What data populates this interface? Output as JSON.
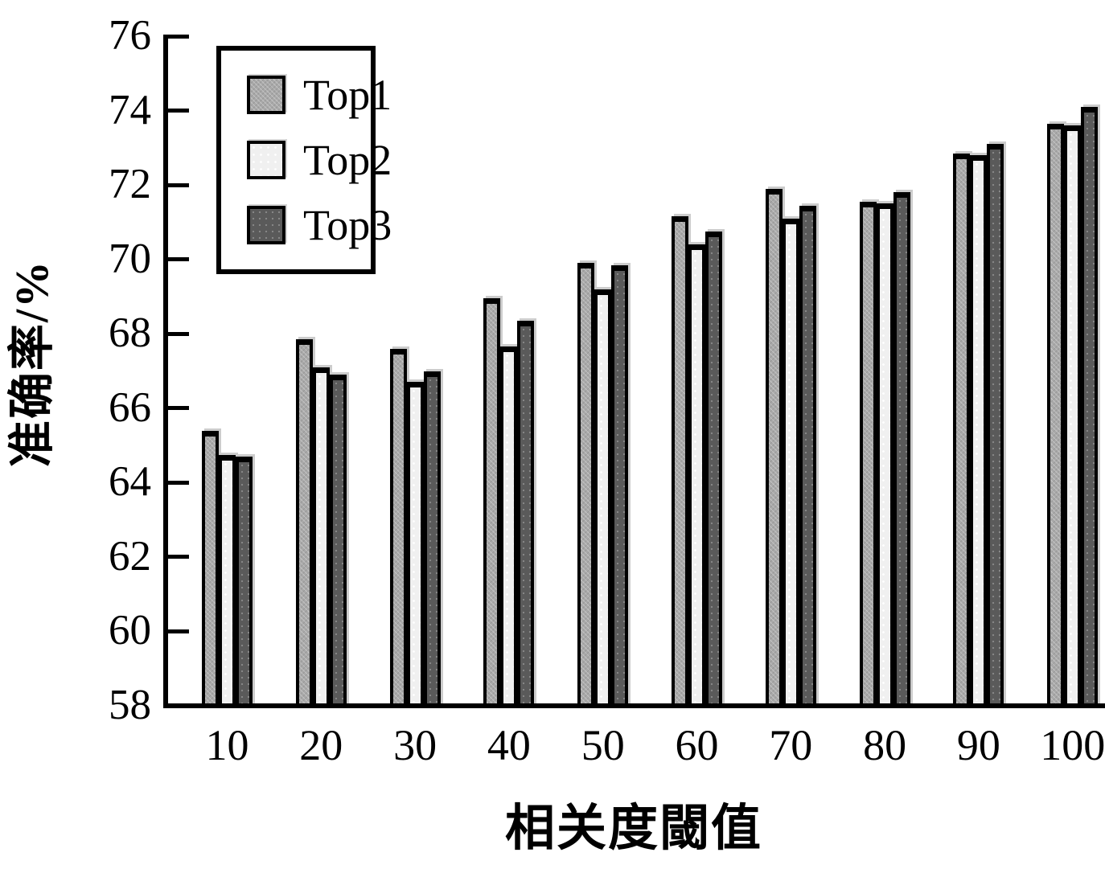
{
  "figure": {
    "background": "#ffffff",
    "axis_color": "#000000",
    "bar_edge_color": "#000000"
  },
  "chart_data": {
    "type": "bar",
    "title": "",
    "xlabel": "相关度閾值",
    "ylabel": "准确率/%",
    "categories": [
      "10",
      "20",
      "30",
      "40",
      "50",
      "60",
      "70",
      "80",
      "90",
      "100"
    ],
    "series": [
      {
        "name": "Top1",
        "color": "#a9a9a9",
        "values": [
          65.4,
          67.85,
          67.6,
          68.95,
          69.9,
          71.15,
          71.9,
          71.55,
          72.85,
          73.65
        ]
      },
      {
        "name": "Top2",
        "color": "#f0f0f0",
        "values": [
          64.75,
          67.1,
          66.7,
          67.65,
          69.2,
          70.4,
          71.1,
          71.5,
          72.8,
          73.6
        ]
      },
      {
        "name": "Top3",
        "color": "#5a5a5a",
        "values": [
          64.7,
          66.9,
          67.0,
          68.35,
          69.85,
          70.75,
          71.45,
          71.8,
          73.1,
          74.1
        ]
      }
    ],
    "ylim": [
      58,
      76
    ],
    "y_ticks": [
      58,
      60,
      62,
      64,
      66,
      68,
      70,
      72,
      74,
      76
    ],
    "grid": false,
    "legend_position": "top-left"
  }
}
